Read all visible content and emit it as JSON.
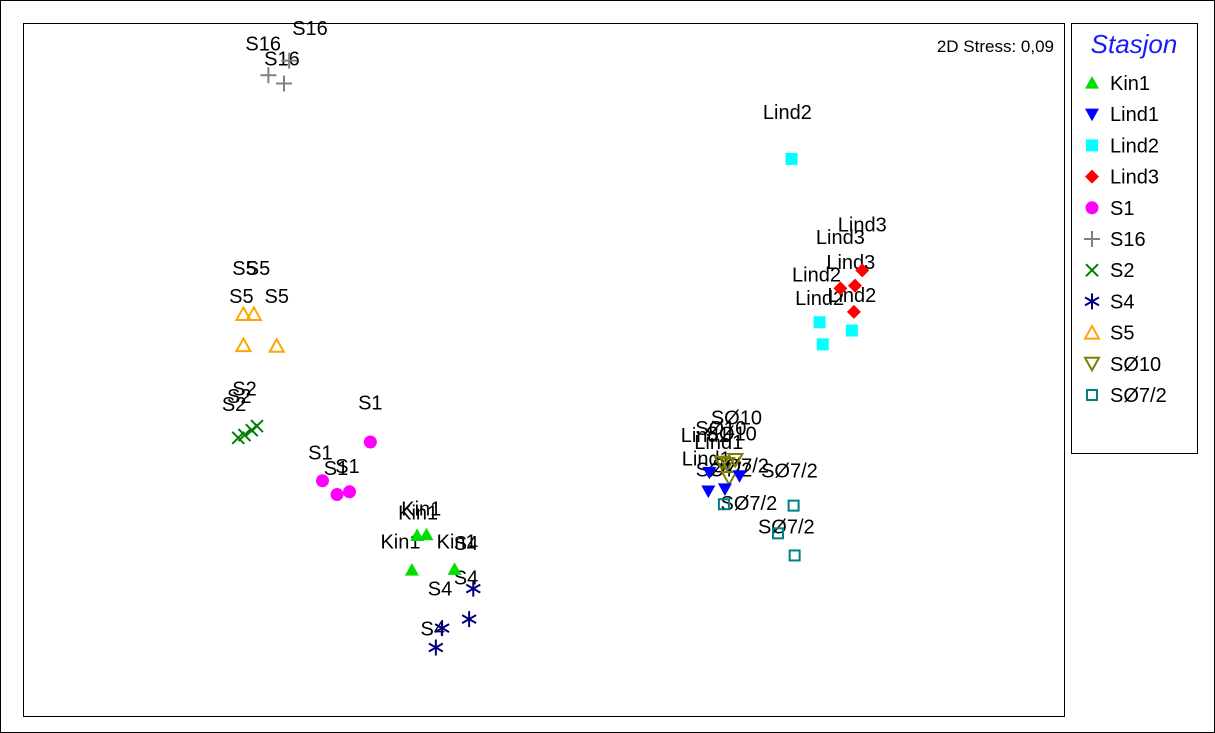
{
  "chart_data": {
    "type": "scatter",
    "title": "",
    "xlabel": "",
    "ylabel": "",
    "stress_label": "2D Stress: 0,09",
    "grid": false,
    "legend": {
      "title": "Stasjon",
      "placement": "right",
      "title_color": "#1a1aff",
      "entries": [
        {
          "label": "Kin1",
          "marker": "triangle-up",
          "color": "#00e000",
          "filled": true
        },
        {
          "label": "Lind1",
          "marker": "triangle-down",
          "color": "#0000ff",
          "filled": true
        },
        {
          "label": "Lind2",
          "marker": "square",
          "color": "#00ffff",
          "filled": true
        },
        {
          "label": "Lind3",
          "marker": "diamond",
          "color": "#ff0000",
          "filled": true
        },
        {
          "label": "S1",
          "marker": "circle",
          "color": "#ff00ff",
          "filled": true
        },
        {
          "label": "S16",
          "marker": "plus",
          "color": "#808080",
          "filled": false
        },
        {
          "label": "S2",
          "marker": "cross",
          "color": "#008000",
          "filled": false
        },
        {
          "label": "S4",
          "marker": "asterisk",
          "color": "#000080",
          "filled": false
        },
        {
          "label": "S5",
          "marker": "triangle-up-open",
          "color": "#ffa500",
          "filled": false
        },
        {
          "label": "SØ10",
          "marker": "triangle-down-open",
          "color": "#808000",
          "filled": false
        },
        {
          "label": "SØ7/2",
          "marker": "square-open",
          "color": "#008080",
          "filled": false
        }
      ]
    },
    "xlim": [
      0,
      1000
    ],
    "ylim": [
      0,
      1000
    ],
    "series": [
      {
        "name": "S16",
        "points": [
          [
            235,
            926
          ],
          [
            255,
            947
          ],
          [
            250,
            914
          ]
        ]
      },
      {
        "name": "Lind2",
        "points": [
          [
            738,
            805
          ],
          [
            765,
            569
          ],
          [
            796,
            557
          ],
          [
            768,
            537
          ]
        ]
      },
      {
        "name": "Lind3",
        "points": [
          [
            806,
            644
          ],
          [
            799,
            622
          ],
          [
            785,
            618
          ],
          [
            798,
            584
          ]
        ]
      },
      {
        "name": "S5",
        "points": [
          [
            211,
            581
          ],
          [
            221,
            581
          ],
          [
            211,
            536
          ],
          [
            243,
            535
          ]
        ]
      },
      {
        "name": "S2",
        "points": [
          [
            206,
            402
          ],
          [
            212,
            406
          ],
          [
            219,
            413
          ],
          [
            224,
            419
          ]
        ]
      },
      {
        "name": "S1",
        "points": [
          [
            333,
            396
          ],
          [
            287,
            340
          ],
          [
            301,
            320
          ],
          [
            313,
            324
          ]
        ]
      },
      {
        "name": "Kin1",
        "points": [
          [
            378,
            261
          ],
          [
            387,
            262
          ],
          [
            373,
            211
          ],
          [
            414,
            212
          ]
        ]
      },
      {
        "name": "S4",
        "points": [
          [
            432,
            184
          ],
          [
            428,
            140
          ],
          [
            402,
            127
          ],
          [
            396,
            99
          ]
        ]
      },
      {
        "name": "SØ10",
        "points": [
          [
            671,
            366
          ],
          [
            676,
            364
          ],
          [
            684,
            370
          ],
          [
            678,
            344
          ]
        ]
      },
      {
        "name": "Lind1",
        "points": [
          [
            659,
            352
          ],
          [
            688,
            347
          ],
          [
            658,
            325
          ],
          [
            674,
            328
          ]
        ]
      },
      {
        "name": "SØ7/2",
        "points": [
          [
            673,
            306
          ],
          [
            740,
            304
          ],
          [
            725,
            264
          ],
          [
            741,
            232
          ]
        ]
      }
    ],
    "point_labels": [
      {
        "text": "S16",
        "x": 275,
        "y": 984
      },
      {
        "text": "S16",
        "x": 230,
        "y": 962
      },
      {
        "text": "S16",
        "x": 248,
        "y": 940
      },
      {
        "text": "Lind2",
        "x": 734,
        "y": 863
      },
      {
        "text": "Lind3",
        "x": 806,
        "y": 700
      },
      {
        "text": "Lind3",
        "x": 785,
        "y": 682
      },
      {
        "text": "Lind3",
        "x": 795,
        "y": 646
      },
      {
        "text": "Lind2",
        "x": 762,
        "y": 628
      },
      {
        "text": "Lind2",
        "x": 765,
        "y": 594
      },
      {
        "text": "Lind2",
        "x": 796,
        "y": 598
      },
      {
        "text": "S5",
        "x": 212,
        "y": 637
      },
      {
        "text": "S5",
        "x": 225,
        "y": 637
      },
      {
        "text": "S5",
        "x": 209,
        "y": 597
      },
      {
        "text": "S5",
        "x": 243,
        "y": 597
      },
      {
        "text": "S2",
        "x": 212,
        "y": 463
      },
      {
        "text": "S2",
        "x": 207,
        "y": 452
      },
      {
        "text": "S2",
        "x": 202,
        "y": 441
      },
      {
        "text": "S1",
        "x": 333,
        "y": 443
      },
      {
        "text": "S1",
        "x": 285,
        "y": 371
      },
      {
        "text": "S1",
        "x": 311,
        "y": 351
      },
      {
        "text": "S1",
        "x": 300,
        "y": 348
      },
      {
        "text": "Kin1",
        "x": 382,
        "y": 290
      },
      {
        "text": "Kin1",
        "x": 379,
        "y": 284
      },
      {
        "text": "Kin1",
        "x": 362,
        "y": 242
      },
      {
        "text": "Kin1",
        "x": 416,
        "y": 242
      },
      {
        "text": "S4",
        "x": 425,
        "y": 240
      },
      {
        "text": "S4",
        "x": 425,
        "y": 190
      },
      {
        "text": "S4",
        "x": 400,
        "y": 174
      },
      {
        "text": "S4",
        "x": 393,
        "y": 116
      },
      {
        "text": "SØ10",
        "x": 685,
        "y": 421
      },
      {
        "text": "SØ10",
        "x": 670,
        "y": 406
      },
      {
        "text": "SØ10",
        "x": 680,
        "y": 398
      },
      {
        "text": "Lind1",
        "x": 655,
        "y": 396
      },
      {
        "text": "Lind1",
        "x": 668,
        "y": 386
      },
      {
        "text": "Lind1",
        "x": 656,
        "y": 362
      },
      {
        "text": "SØ7/2",
        "x": 673,
        "y": 346
      },
      {
        "text": "SØ7/2",
        "x": 689,
        "y": 352
      },
      {
        "text": "SØ7/2",
        "x": 736,
        "y": 345
      },
      {
        "text": "SØ7/2",
        "x": 697,
        "y": 298
      },
      {
        "text": "SØ7/2",
        "x": 733,
        "y": 264
      }
    ]
  }
}
